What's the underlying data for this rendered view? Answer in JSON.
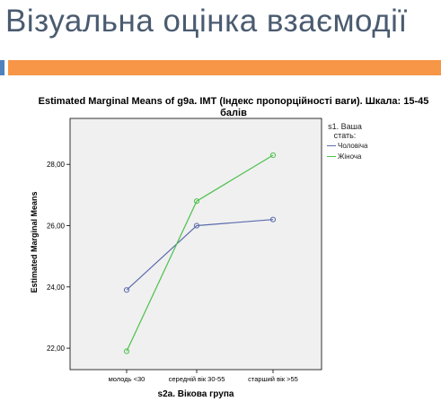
{
  "slide": {
    "title": "Візуальна оцінка взаємодії"
  },
  "colors": {
    "title": "#4a5b70",
    "accent_bar": "#f79646",
    "accent_small": "#4f81bd",
    "plot_bg": "#f0f0f0"
  },
  "chart_data": {
    "type": "line",
    "title": "Estimated Marginal Means of g9a. ІМТ (Індекс пропорційності ваги). Шкала: 15-45 балів",
    "xlabel": "s2a. Вікова група",
    "ylabel": "Estimated Marginal Means",
    "categories": [
      "молодь <30",
      "середній вік 30-55",
      "старший вік >55"
    ],
    "ylim": [
      21.3,
      29.5
    ],
    "yticks": [
      22,
      24,
      26,
      28
    ],
    "ytick_labels": [
      "22,00",
      "24,00",
      "26,00",
      "28,00"
    ],
    "legend_title": "s1. Ваша стать:",
    "legend_position": "right",
    "grid": false,
    "series": [
      {
        "name": "Чоловіча",
        "values": [
          23.9,
          26.0,
          26.2
        ],
        "color": "#5b6bab"
      },
      {
        "name": "Жіноча",
        "values": [
          21.9,
          26.8,
          28.3
        ],
        "color": "#4cc04c"
      }
    ]
  }
}
